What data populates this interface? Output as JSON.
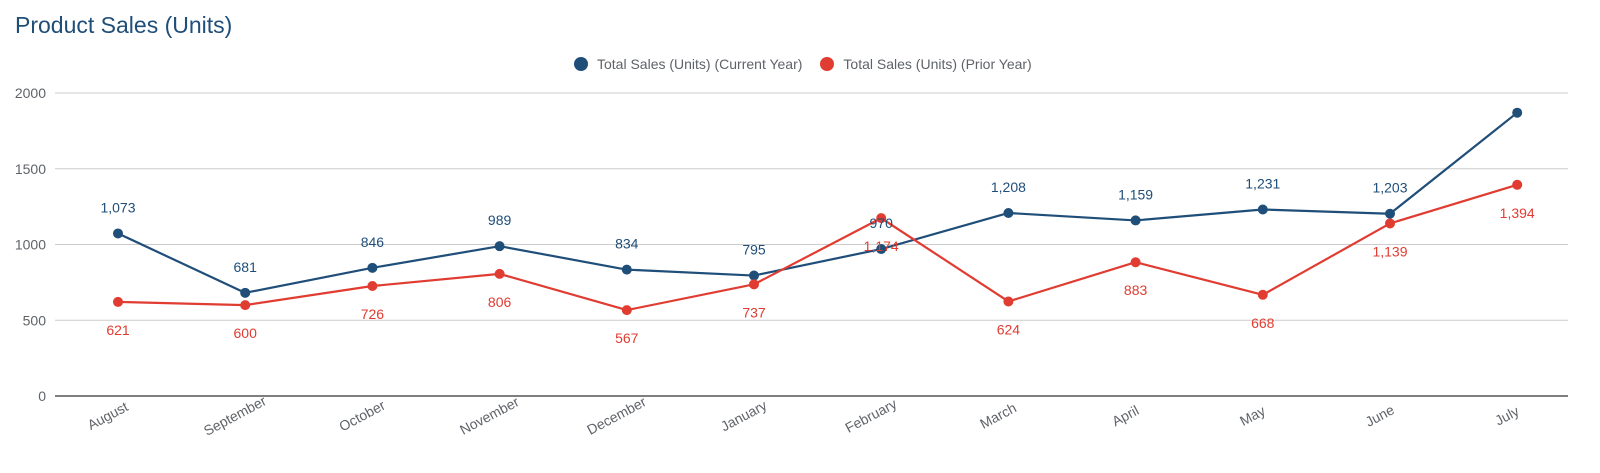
{
  "chart_data": {
    "type": "line",
    "title": "Product Sales (Units)",
    "xlabel": "",
    "ylabel": "",
    "ylim": [
      0,
      2000
    ],
    "yticks": [
      0,
      500,
      1000,
      1500,
      2000
    ],
    "grid": true,
    "legend_position": "top",
    "categories": [
      "August",
      "September",
      "October",
      "November",
      "December",
      "January",
      "February",
      "March",
      "April",
      "May",
      "June",
      "July"
    ],
    "series": [
      {
        "name": "Total Sales (Units) (Current Year)",
        "color": "#1f4e79",
        "values": [
          1073,
          681,
          846,
          989,
          834,
          795,
          970,
          1208,
          1159,
          1231,
          1203,
          1870
        ],
        "labels": [
          "1,073",
          "681",
          "846",
          "989",
          "834",
          "795",
          "970",
          "1,208",
          "1,159",
          "1,231",
          "1,203",
          ""
        ]
      },
      {
        "name": "Total Sales (Units) (Prior Year)",
        "color": "#e03c31",
        "values": [
          621,
          600,
          726,
          806,
          567,
          737,
          1174,
          624,
          883,
          668,
          1139,
          1394
        ],
        "labels": [
          "621",
          "600",
          "726",
          "806",
          "567",
          "737",
          "1,174",
          "624",
          "883",
          "668",
          "1,139",
          "1,394"
        ]
      }
    ]
  }
}
